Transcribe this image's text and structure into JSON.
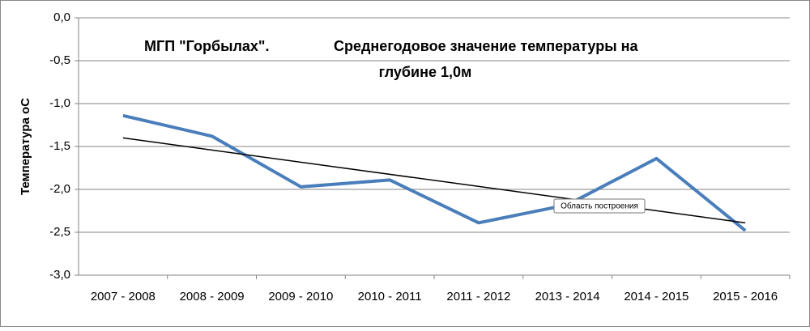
{
  "chart_data": {
    "type": "line",
    "title": [
      "МГП \"Горбылах\".",
      "Среднегодовое значение температуры на",
      "глубине 1,0м"
    ],
    "y_label": "Температура  оС",
    "categories": [
      "2007 - 2008",
      "2008 - 2009",
      "2009 - 2010",
      "2010 - 2011",
      "2011 - 2012",
      "2013 - 2014",
      "2014 - 2015",
      "2015 - 2016"
    ],
    "values": [
      -1.14,
      -1.38,
      -1.97,
      -1.89,
      -2.39,
      -2.18,
      -1.64,
      -2.48
    ],
    "color": "#4a7ebb",
    "trendline": {
      "values": [
        -1.4,
        -2.39
      ],
      "color": "#000000"
    },
    "ylim": [
      -3,
      0
    ],
    "yticks": [
      {
        "value": 0,
        "label": "0,0"
      },
      {
        "value": -0.5,
        "label": "-0,5"
      },
      {
        "value": -1,
        "label": "-1,0"
      },
      {
        "value": -1.5,
        "label": "-1,5"
      },
      {
        "value": -2,
        "label": "-2,0"
      },
      {
        "value": -2.5,
        "label": "-2,5"
      },
      {
        "value": -3,
        "label": "-3,0"
      }
    ],
    "grid": true,
    "tooltip": "Область построения"
  }
}
